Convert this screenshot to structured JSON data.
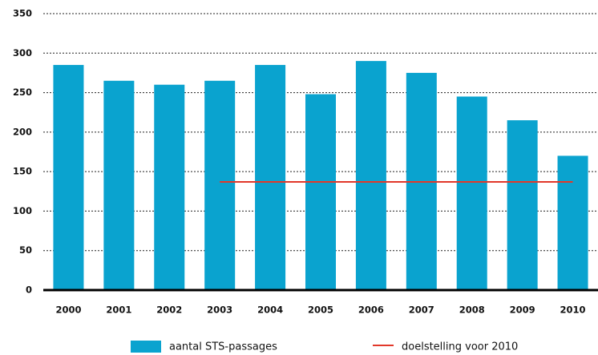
{
  "chart_data": {
    "type": "bar",
    "categories": [
      "2000",
      "2001",
      "2002",
      "2003",
      "2004",
      "2005",
      "2006",
      "2007",
      "2008",
      "2009",
      "2010"
    ],
    "series": [
      {
        "name": "aantal STS-passages",
        "type": "bar",
        "color": "#0aa3cf",
        "values": [
          285,
          265,
          260,
          265,
          285,
          248,
          290,
          275,
          245,
          215,
          170
        ]
      },
      {
        "name": "doelstelling voor 2010",
        "type": "line",
        "color": "#e2382a",
        "values": [
          null,
          null,
          null,
          137,
          137,
          137,
          137,
          137,
          137,
          137,
          137
        ]
      }
    ],
    "ylim": [
      0,
      350
    ],
    "yticks": [
      0,
      50,
      100,
      150,
      200,
      250,
      300,
      350
    ],
    "grid": true
  }
}
